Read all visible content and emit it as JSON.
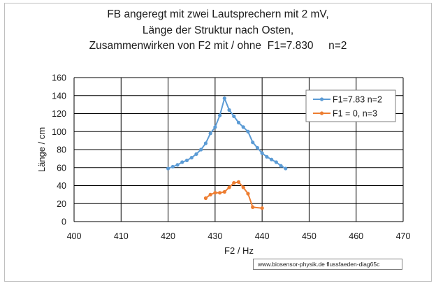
{
  "chart_data": {
    "type": "line",
    "title_lines": [
      "FB angeregt mit zwei Lautsprechern mit 2 mV,",
      "Länge der Struktur nach Osten,",
      "Zusammenwirken von F2 mit / ohne  F1=7.830     n=2"
    ],
    "xlabel": "F2 / Hz",
    "ylabel": "Länge / cm",
    "xlim": [
      400,
      470
    ],
    "ylim": [
      0,
      160
    ],
    "xticks": [
      400,
      410,
      420,
      430,
      440,
      450,
      460,
      470
    ],
    "yticks": [
      0,
      20,
      40,
      60,
      80,
      100,
      120,
      140,
      160
    ],
    "grid": true,
    "legend_position": "top-right",
    "series": [
      {
        "name": "F1=7.83  n=2",
        "color": "#5b9bd5",
        "points": [
          [
            420,
            59
          ],
          [
            421,
            61
          ],
          [
            422,
            63
          ],
          [
            423,
            66
          ],
          [
            424,
            68
          ],
          [
            425,
            71
          ],
          [
            426,
            75
          ],
          [
            427,
            80
          ],
          [
            428,
            87
          ],
          [
            429,
            98
          ],
          [
            430,
            105
          ],
          [
            431,
            118
          ],
          [
            432,
            137
          ],
          [
            433,
            124
          ],
          [
            434,
            117
          ],
          [
            435,
            110
          ],
          [
            436,
            105
          ],
          [
            437,
            100
          ],
          [
            438,
            88
          ],
          [
            439,
            82
          ],
          [
            440,
            76
          ],
          [
            441,
            72
          ],
          [
            442,
            69
          ],
          [
            443,
            66
          ],
          [
            444,
            62
          ],
          [
            445,
            59
          ]
        ]
      },
      {
        "name": "F1 = 0, n=3",
        "color": "#ed7d31",
        "points": [
          [
            428,
            26
          ],
          [
            429,
            30
          ],
          [
            430,
            32
          ],
          [
            431,
            32
          ],
          [
            432,
            33
          ],
          [
            433,
            38
          ],
          [
            434,
            43
          ],
          [
            435,
            44
          ],
          [
            436,
            38
          ],
          [
            437,
            31
          ],
          [
            438,
            16
          ],
          [
            440,
            15
          ]
        ]
      }
    ]
  },
  "source": "www.biosensor-physik.de  flussfaeden-diag65c"
}
